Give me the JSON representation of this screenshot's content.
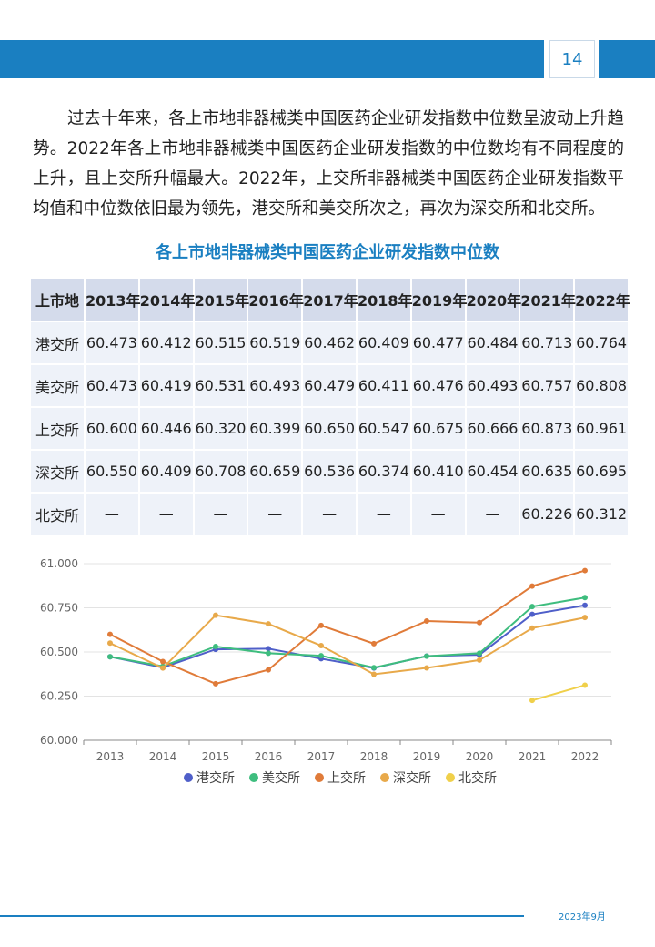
{
  "header": {
    "page_number": "14",
    "accent": "#1a7fc1"
  },
  "paragraph": "过去十年来，各上市地非器械类中国医药企业研发指数中位数呈波动上升趋势。2022年各上市地非器械类中国医药企业研发指数的中位数均有不同程度的上升，且上交所升幅最大。2022年，上交所非器械类中国医药企业研发指数平均值和中位数依旧最为领先，港交所和美交所次之，再次为深交所和北交所。",
  "table": {
    "title": "各上市地非器械类中国医药企业研发指数中位数",
    "headers": [
      "上市地",
      "2013年",
      "2014年",
      "2015年",
      "2016年",
      "2017年",
      "2018年",
      "2019年",
      "2020年",
      "2021年",
      "2022年"
    ],
    "rows": [
      [
        "港交所",
        "60.473",
        "60.412",
        "60.515",
        "60.519",
        "60.462",
        "60.409",
        "60.477",
        "60.484",
        "60.713",
        "60.764"
      ],
      [
        "美交所",
        "60.473",
        "60.419",
        "60.531",
        "60.493",
        "60.479",
        "60.411",
        "60.476",
        "60.493",
        "60.757",
        "60.808"
      ],
      [
        "上交所",
        "60.600",
        "60.446",
        "60.320",
        "60.399",
        "60.650",
        "60.547",
        "60.675",
        "60.666",
        "60.873",
        "60.961"
      ],
      [
        "深交所",
        "60.550",
        "60.409",
        "60.708",
        "60.659",
        "60.536",
        "60.374",
        "60.410",
        "60.454",
        "60.635",
        "60.695"
      ],
      [
        "北交所",
        "—",
        "—",
        "—",
        "—",
        "—",
        "—",
        "—",
        "—",
        "60.226",
        "60.312"
      ]
    ]
  },
  "chart_data": {
    "type": "line",
    "x": [
      "2013",
      "2014",
      "2015",
      "2016",
      "2017",
      "2018",
      "2019",
      "2020",
      "2021",
      "2022"
    ],
    "ylim": [
      60.0,
      61.0
    ],
    "yticks": [
      "60.000",
      "60.250",
      "60.500",
      "60.750",
      "61.000"
    ],
    "grid": true,
    "legend_position": "bottom",
    "series": [
      {
        "name": "港交所",
        "color": "#4f5fc9",
        "values": [
          60.473,
          60.412,
          60.515,
          60.519,
          60.462,
          60.409,
          60.477,
          60.484,
          60.713,
          60.764
        ]
      },
      {
        "name": "美交所",
        "color": "#3ebd7e",
        "values": [
          60.473,
          60.419,
          60.531,
          60.493,
          60.479,
          60.411,
          60.476,
          60.493,
          60.757,
          60.808
        ]
      },
      {
        "name": "上交所",
        "color": "#e07b39",
        "values": [
          60.6,
          60.446,
          60.32,
          60.399,
          60.65,
          60.547,
          60.675,
          60.666,
          60.873,
          60.961
        ]
      },
      {
        "name": "深交所",
        "color": "#e8a94a",
        "values": [
          60.55,
          60.409,
          60.708,
          60.659,
          60.536,
          60.374,
          60.41,
          60.454,
          60.635,
          60.695
        ]
      },
      {
        "name": "北交所",
        "color": "#f0d04a",
        "values": [
          null,
          null,
          null,
          null,
          null,
          null,
          null,
          null,
          60.226,
          60.312
        ]
      }
    ]
  },
  "footer": {
    "date": "2023年9月"
  }
}
